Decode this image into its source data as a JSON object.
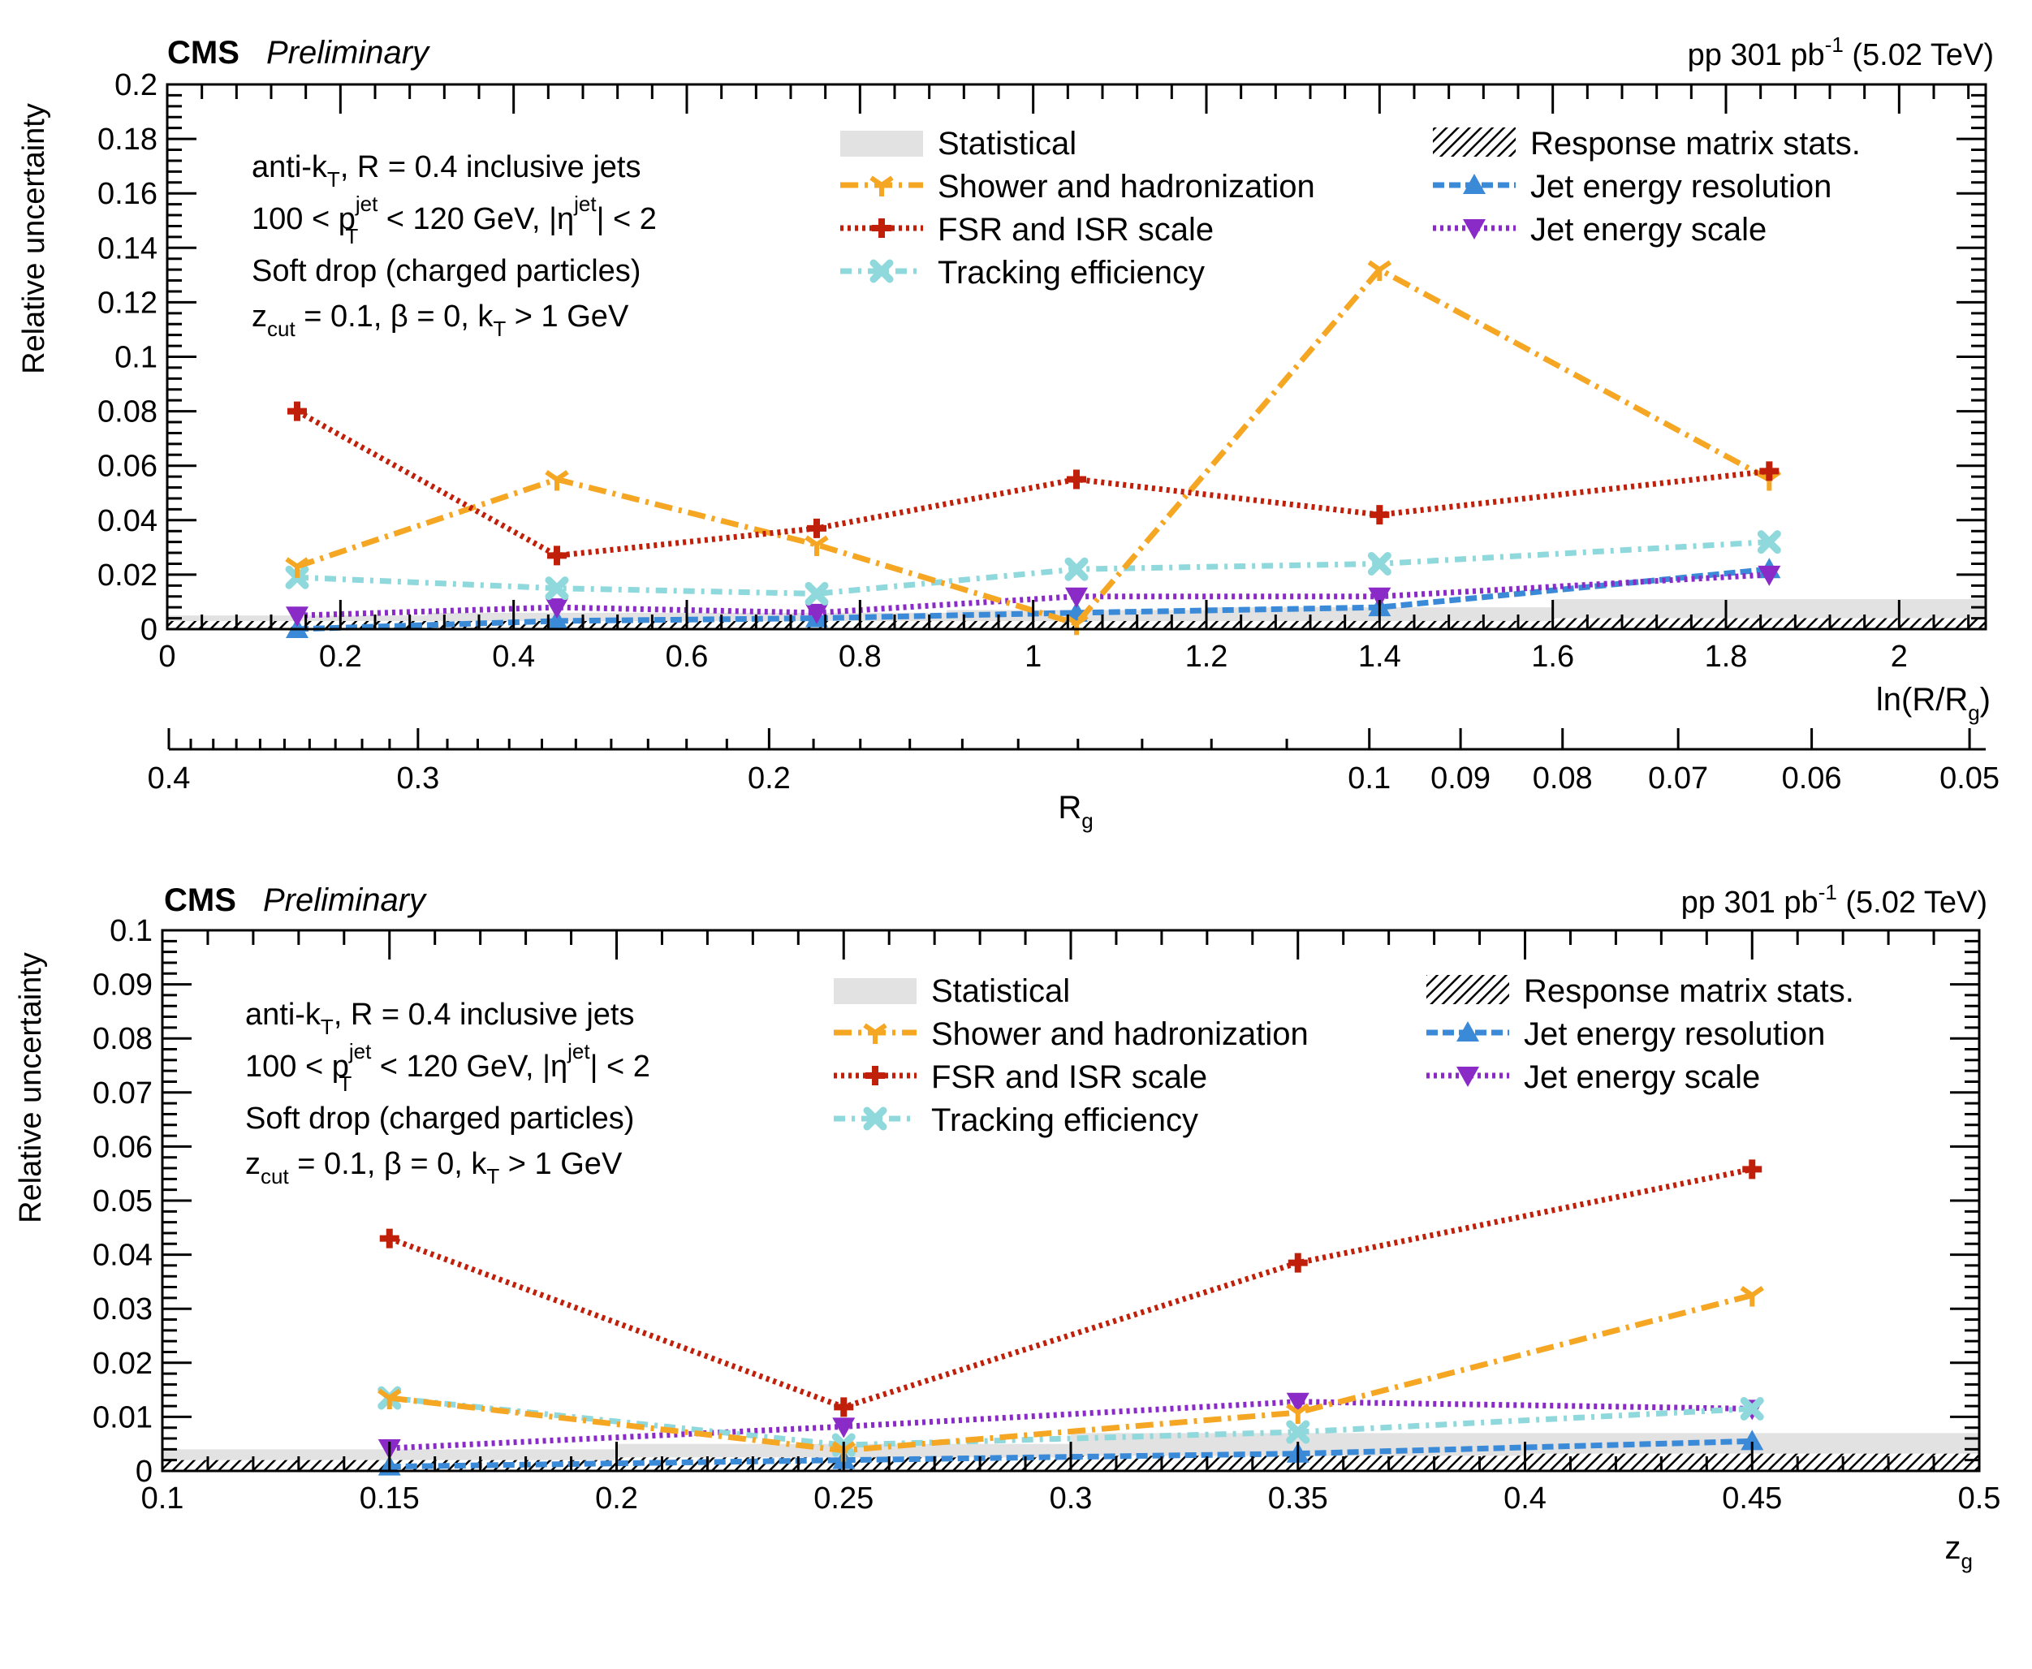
{
  "colors": {
    "shower": "#f5a623",
    "fsr": "#c0200a",
    "tracking": "#8fd8dc",
    "jer": "#3a8ad8",
    "jes": "#8a2bc8",
    "statistical": "#e2e2e2",
    "frame": "#000000"
  },
  "panels": [
    {
      "cms_label": "CMS",
      "preliminary_label": "Preliminary",
      "lumi": {
        "pre": "pp 301 pb",
        "sup": "-1",
        "post": " (5.02 TeV)"
      },
      "info": {
        "line1": {
          "pre": "anti-k",
          "sub": "T",
          "post": ", R = 0.4 inclusive jets"
        },
        "line2": {
          "pre": "100 < p",
          "sup": "jet",
          "sub": "T",
          "mid": " < 120 GeV, |η",
          "sup2": "jet",
          "post": "| < 2"
        },
        "line3": "Soft drop (charged particles)",
        "line4": {
          "pre": "z",
          "sub": "cut",
          "post": " = 0.1, β = 0, k",
          "sub2": "T",
          "post2": " > 1 GeV"
        }
      },
      "legend": {
        "statistical": "Statistical",
        "shower": "Shower and hadronization",
        "fsr": "FSR and ISR scale",
        "tracking": "Tracking efficiency",
        "response": "Response matrix stats.",
        "jer": "Jet energy resolution",
        "jes": "Jet energy scale"
      },
      "secondary_axis": {
        "label": {
          "pre": "R",
          "sub": "g"
        },
        "ticks": [
          "0.4",
          "0.3",
          "0.2",
          "0.1",
          "0.09",
          "0.08",
          "0.07",
          "0.06",
          "0.05"
        ]
      }
    },
    {
      "cms_label": "CMS",
      "preliminary_label": "Preliminary",
      "lumi": {
        "pre": "pp 301 pb",
        "sup": "-1",
        "post": " (5.02 TeV)"
      },
      "info": {
        "line1": {
          "pre": "anti-k",
          "sub": "T",
          "post": ", R = 0.4 inclusive jets"
        },
        "line2": {
          "pre": "100 < p",
          "sup": "jet",
          "sub": "T",
          "mid": " < 120 GeV, |η",
          "sup2": "jet",
          "post": "| < 2"
        },
        "line3": "Soft drop (charged particles)",
        "line4": {
          "pre": "z",
          "sub": "cut",
          "post": " = 0.1, β = 0, k",
          "sub2": "T",
          "post2": " > 1 GeV"
        }
      },
      "legend": {
        "statistical": "Statistical",
        "shower": "Shower and hadronization",
        "fsr": "FSR and ISR scale",
        "tracking": "Tracking efficiency",
        "response": "Response matrix stats.",
        "jer": "Jet energy resolution",
        "jes": "Jet energy scale"
      }
    }
  ],
  "chart_data": [
    {
      "type": "line",
      "title": "CMS Preliminary",
      "xlabel": "ln(R/R_g)",
      "xlabel_parts": {
        "pre": "ln(R/R",
        "sub": "g",
        "post": ")"
      },
      "ylabel": "Relative uncertainty",
      "xlim": [
        0,
        2.1
      ],
      "ylim": [
        0,
        0.2
      ],
      "xticks": [
        0,
        0.2,
        0.4,
        0.6,
        0.8,
        1,
        1.2,
        1.4,
        1.6,
        1.8,
        2
      ],
      "xtick_labels": [
        "0",
        "0.2",
        "0.4",
        "0.6",
        "0.8",
        "1",
        "1.2",
        "1.4",
        "1.6",
        "1.8",
        "2"
      ],
      "yticks": [
        0,
        0.02,
        0.04,
        0.06,
        0.08,
        0.1,
        0.12,
        0.14,
        0.16,
        0.18,
        0.2
      ],
      "ytick_labels": [
        "0",
        "0.02",
        "0.04",
        "0.06",
        "0.08",
        "0.1",
        "0.12",
        "0.14",
        "0.16",
        "0.18",
        "0.2"
      ],
      "x": [
        0.15,
        0.45,
        0.75,
        1.05,
        1.4,
        1.85
      ],
      "series": [
        {
          "name": "Shower and hadronization",
          "key": "shower",
          "values": [
            0.023,
            0.055,
            0.031,
            0.002,
            0.132,
            0.055
          ]
        },
        {
          "name": "FSR and ISR scale",
          "key": "fsr",
          "values": [
            0.08,
            0.027,
            0.037,
            0.055,
            0.042,
            0.058
          ]
        },
        {
          "name": "Tracking efficiency",
          "key": "tracking",
          "values": [
            0.019,
            0.015,
            0.013,
            0.022,
            0.024,
            0.032
          ]
        },
        {
          "name": "Jet energy resolution",
          "key": "jer",
          "values": [
            0.0,
            0.003,
            0.004,
            0.006,
            0.008,
            0.022
          ]
        },
        {
          "name": "Jet energy scale",
          "key": "jes",
          "values": [
            0.005,
            0.008,
            0.006,
            0.012,
            0.012,
            0.02
          ]
        }
      ],
      "statistical": {
        "bin_edges": [
          0,
          0.3,
          0.6,
          0.9,
          1.2,
          1.6,
          2.1
        ],
        "values": [
          0.005,
          0.006,
          0.006,
          0.007,
          0.008,
          0.011
        ]
      },
      "response_matrix_stats": {
        "bin_edges": [
          0,
          0.3,
          0.6,
          0.9,
          1.2,
          1.6,
          2.1
        ],
        "values": [
          0.002,
          0.002,
          0.002,
          0.002,
          0.003,
          0.004
        ]
      }
    },
    {
      "type": "line",
      "title": "CMS Preliminary",
      "xlabel": "z_g",
      "xlabel_parts": {
        "pre": "z",
        "sub": "g",
        "post": ""
      },
      "ylabel": "Relative uncertainty",
      "xlim": [
        0.1,
        0.5
      ],
      "ylim": [
        0,
        0.1
      ],
      "xticks": [
        0.1,
        0.15,
        0.2,
        0.25,
        0.3,
        0.35,
        0.4,
        0.45,
        0.5
      ],
      "xtick_labels": [
        "0.1",
        "0.15",
        "0.2",
        "0.25",
        "0.3",
        "0.35",
        "0.4",
        "0.45",
        "0.5"
      ],
      "yticks": [
        0,
        0.01,
        0.02,
        0.03,
        0.04,
        0.05,
        0.06,
        0.07,
        0.08,
        0.09,
        0.1
      ],
      "ytick_labels": [
        "0",
        "0.01",
        "0.02",
        "0.03",
        "0.04",
        "0.05",
        "0.06",
        "0.07",
        "0.08",
        "0.09",
        "0.1"
      ],
      "x": [
        0.15,
        0.25,
        0.35,
        0.45
      ],
      "series": [
        {
          "name": "Shower and hadronization",
          "key": "shower",
          "values": [
            0.0135,
            0.0038,
            0.0108,
            0.0325
          ]
        },
        {
          "name": "FSR and ISR scale",
          "key": "fsr",
          "values": [
            0.043,
            0.0118,
            0.0385,
            0.0558
          ]
        },
        {
          "name": "Tracking efficiency",
          "key": "tracking",
          "values": [
            0.0135,
            0.0048,
            0.0072,
            0.0115
          ]
        },
        {
          "name": "Jet energy resolution",
          "key": "jer",
          "values": [
            0.0008,
            0.002,
            0.0032,
            0.0055
          ]
        },
        {
          "name": "Jet energy scale",
          "key": "jes",
          "values": [
            0.0042,
            0.0082,
            0.0128,
            0.0115
          ]
        }
      ],
      "statistical": {
        "bin_edges": [
          0.1,
          0.2,
          0.3,
          0.4,
          0.5
        ],
        "values": [
          0.004,
          0.005,
          0.007,
          0.007
        ]
      },
      "response_matrix_stats": {
        "bin_edges": [
          0.1,
          0.2,
          0.3,
          0.4,
          0.5
        ],
        "values": [
          0.002,
          0.0025,
          0.0028,
          0.0032
        ]
      }
    }
  ]
}
